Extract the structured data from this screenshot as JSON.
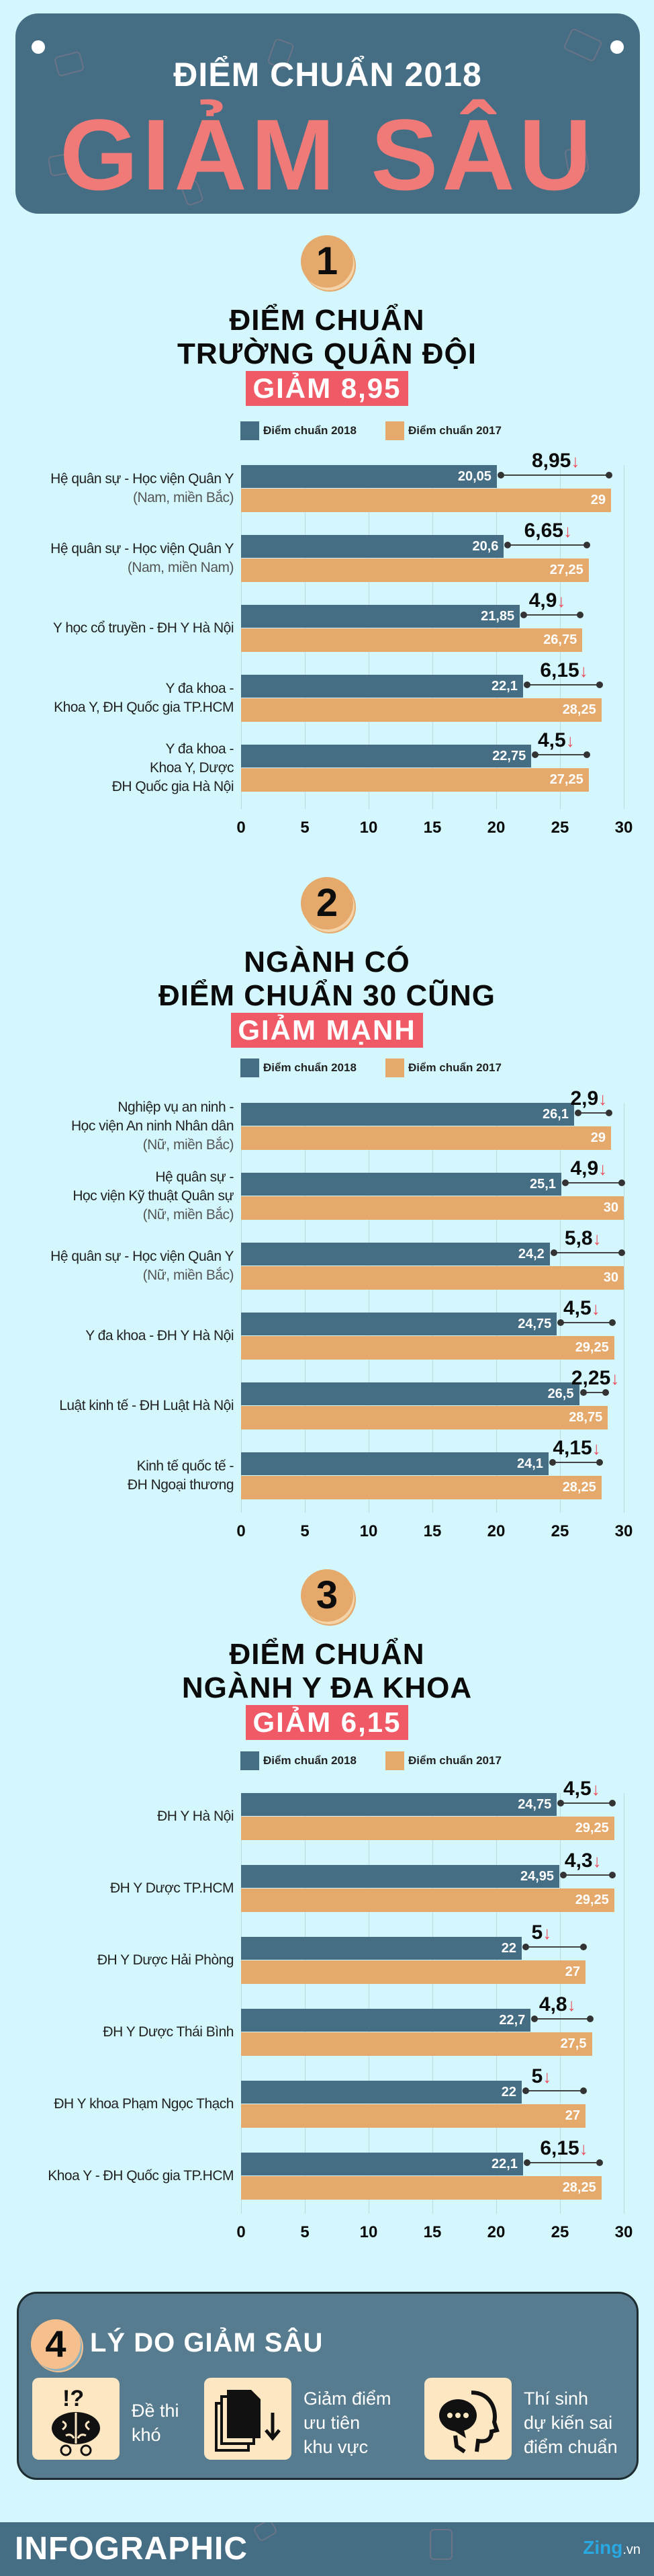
{
  "banner": {
    "subtitle": "ĐIỂM CHUẨN 2018",
    "title": "GIẢM SÂU"
  },
  "legend": {
    "series_2018": "Điểm chuẩn 2018",
    "series_2017": "Điểm chuẩn 2017"
  },
  "colors": {
    "bar_2018": "#456E84",
    "bar_2017": "#E4A96B",
    "badge": "#F05A66",
    "arrow": "#EE4B5A",
    "background": "#D3F7FD",
    "banner_title": "#F07A78"
  },
  "axis": {
    "ticks": [
      "0",
      "5",
      "10",
      "15",
      "20",
      "25",
      "30"
    ]
  },
  "sections": [
    {
      "number": "1",
      "title_line1": "ĐIỂM CHUẨN",
      "title_line2": "TRƯỜNG QUÂN ĐỘI",
      "badge": "GIẢM 8,95",
      "rows": [
        {
          "label": [
            "Hệ quân sự - Học viện Quân Y"
          ],
          "note": "(Nam, miền Bắc)",
          "v2018": "20,05",
          "v2017": "29",
          "diff": "8,95"
        },
        {
          "label": [
            "Hệ quân sự - Học viện Quân Y"
          ],
          "note": "(Nam, miền Nam)",
          "v2018": "20,6",
          "v2017": "27,25",
          "diff": "6,65"
        },
        {
          "label": [
            "Y học cổ truyền - ĐH Y Hà Nội"
          ],
          "note": "",
          "v2018": "21,85",
          "v2017": "26,75",
          "diff": "4,9"
        },
        {
          "label": [
            "Y đa khoa -",
            "Khoa Y, ĐH Quốc gia TP.HCM"
          ],
          "note": "",
          "v2018": "22,1",
          "v2017": "28,25",
          "diff": "6,15"
        },
        {
          "label": [
            "Y đa khoa -",
            "Khoa Y, Dược",
            "ĐH Quốc gia Hà Nội"
          ],
          "note": "",
          "v2018": "22,75",
          "v2017": "27,25",
          "diff": "4,5"
        }
      ]
    },
    {
      "number": "2",
      "title_line1": "NGÀNH CÓ",
      "title_line2": "ĐIỂM CHUẨN 30 CŨNG",
      "badge": "GIẢM MẠNH",
      "rows": [
        {
          "label": [
            "Nghiệp vụ an ninh -",
            "Học viện An ninh Nhân dân"
          ],
          "note": "(Nữ, miền Bắc)",
          "v2018": "26,1",
          "v2017": "29",
          "diff": "2,9"
        },
        {
          "label": [
            "Hệ quân sự -",
            "Học viện Kỹ thuật Quân sự"
          ],
          "note": "(Nữ, miền Bắc)",
          "v2018": "25,1",
          "v2017": "30",
          "diff": "4,9"
        },
        {
          "label": [
            "Hệ quân sự - Học viện Quân Y"
          ],
          "note": "(Nữ, miền Bắc)",
          "v2018": "24,2",
          "v2017": "30",
          "diff": "5,8"
        },
        {
          "label": [
            "Y đa khoa - ĐH Y Hà Nội"
          ],
          "note": "",
          "v2018": "24,75",
          "v2017": "29,25",
          "diff": "4,5"
        },
        {
          "label": [
            "Luật kinh tế - ĐH Luật Hà Nội"
          ],
          "note": "",
          "v2018": "26,5",
          "v2017": "28,75",
          "diff": "2,25"
        },
        {
          "label": [
            "Kinh tế quốc tế -",
            "ĐH Ngoại thương"
          ],
          "note": "",
          "v2018": "24,1",
          "v2017": "28,25",
          "diff": "4,15"
        }
      ]
    },
    {
      "number": "3",
      "title_line1": "ĐIỂM CHUẨN",
      "title_line2": "NGÀNH Y ĐA KHOA",
      "badge": "GIẢM 6,15",
      "rows": [
        {
          "label": [
            "ĐH Y Hà Nội"
          ],
          "note": "",
          "v2018": "24,75",
          "v2017": "29,25",
          "diff": "4,5"
        },
        {
          "label": [
            "ĐH Y Dược TP.HCM"
          ],
          "note": "",
          "v2018": "24,95",
          "v2017": "29,25",
          "diff": "4,3"
        },
        {
          "label": [
            "ĐH Y Dược Hải Phòng"
          ],
          "note": "",
          "v2018": "22",
          "v2017": "27",
          "diff": "5"
        },
        {
          "label": [
            "ĐH Y Dược Thái Bình"
          ],
          "note": "",
          "v2018": "22,7",
          "v2017": "27,5",
          "diff": "4,8"
        },
        {
          "label": [
            "ĐH Y khoa Phạm Ngọc Thạch"
          ],
          "note": "",
          "v2018": "22",
          "v2017": "27",
          "diff": "5"
        },
        {
          "label": [
            "Khoa Y - ĐH Quốc gia TP.HCM"
          ],
          "note": "",
          "v2018": "22,1",
          "v2017": "28,25",
          "diff": "6,15"
        }
      ]
    }
  ],
  "reasons": {
    "number": "4",
    "title": "LÝ DO GIẢM SÂU",
    "items": [
      {
        "icon": "brain-question-icon",
        "lines": [
          "Đề thi",
          "khó"
        ]
      },
      {
        "icon": "documents-down-icon",
        "lines": [
          "Giảm điểm",
          "ưu tiên",
          "khu vực"
        ]
      },
      {
        "icon": "head-speech-bubble-icon",
        "lines": [
          "Thí sinh",
          "dự kiến sai",
          "điểm chuẩn"
        ]
      }
    ]
  },
  "footer": {
    "logo": "INFOGRAPHIC",
    "brand": "Zing",
    "brand_suffix": ".vn"
  },
  "chart_data": [
    {
      "type": "bar",
      "title": "ĐIỂM CHUẨN TRƯỜNG QUÂN ĐỘI — GIẢM 8,95",
      "categories": [
        "Hệ quân sự - Học viện Quân Y (Nam, miền Bắc)",
        "Hệ quân sự - Học viện Quân Y (Nam, miền Nam)",
        "Y học cổ truyền - ĐH Y Hà Nội",
        "Y đa khoa - Khoa Y, ĐH Quốc gia TP.HCM",
        "Y đa khoa - Khoa Y, Dược ĐH Quốc gia Hà Nội"
      ],
      "series": [
        {
          "name": "Điểm chuẩn 2018",
          "values": [
            20.05,
            20.6,
            21.85,
            22.1,
            22.75
          ]
        },
        {
          "name": "Điểm chuẩn 2017",
          "values": [
            29,
            27.25,
            26.75,
            28.25,
            27.25
          ]
        }
      ],
      "annotations": {
        "decrease": [
          8.95,
          6.65,
          4.9,
          6.15,
          4.5
        ]
      },
      "orientation": "horizontal",
      "xlim": [
        0,
        30
      ],
      "xticks": [
        0,
        5,
        10,
        15,
        20,
        25,
        30
      ],
      "grid": true,
      "legend_position": "top"
    },
    {
      "type": "bar",
      "title": "NGÀNH CÓ ĐIỂM CHUẨN 30 CŨNG GIẢM MẠNH",
      "categories": [
        "Nghiệp vụ an ninh - Học viện An ninh Nhân dân (Nữ, miền Bắc)",
        "Hệ quân sự - Học viện Kỹ thuật Quân sự (Nữ, miền Bắc)",
        "Hệ quân sự - Học viện Quân Y (Nữ, miền Bắc)",
        "Y đa khoa - ĐH Y Hà Nội",
        "Luật kinh tế - ĐH Luật Hà Nội",
        "Kinh tế quốc tế - ĐH Ngoại thương"
      ],
      "series": [
        {
          "name": "Điểm chuẩn 2018",
          "values": [
            26.1,
            25.1,
            24.2,
            24.75,
            26.5,
            24.1
          ]
        },
        {
          "name": "Điểm chuẩn 2017",
          "values": [
            29,
            30,
            30,
            29.25,
            28.75,
            28.25
          ]
        }
      ],
      "annotations": {
        "decrease": [
          2.9,
          4.9,
          5.8,
          4.5,
          2.25,
          4.15
        ]
      },
      "orientation": "horizontal",
      "xlim": [
        0,
        30
      ],
      "xticks": [
        0,
        5,
        10,
        15,
        20,
        25,
        30
      ],
      "grid": true,
      "legend_position": "top"
    },
    {
      "type": "bar",
      "title": "ĐIỂM CHUẨN NGÀNH Y ĐA KHOA — GIẢM 6,15",
      "categories": [
        "ĐH Y Hà Nội",
        "ĐH Y Dược TP.HCM",
        "ĐH Y Dược Hải Phòng",
        "ĐH Y Dược Thái Bình",
        "ĐH Y khoa Phạm Ngọc Thạch",
        "Khoa Y - ĐH Quốc gia TP.HCM"
      ],
      "series": [
        {
          "name": "Điểm chuẩn 2018",
          "values": [
            24.75,
            24.95,
            22,
            22.7,
            22,
            22.1
          ]
        },
        {
          "name": "Điểm chuẩn 2017",
          "values": [
            29.25,
            29.25,
            27,
            27.5,
            27,
            28.25
          ]
        }
      ],
      "annotations": {
        "decrease": [
          4.5,
          4.3,
          5,
          4.8,
          5,
          6.15
        ]
      },
      "orientation": "horizontal",
      "xlim": [
        0,
        30
      ],
      "xticks": [
        0,
        5,
        10,
        15,
        20,
        25,
        30
      ],
      "grid": true,
      "legend_position": "top"
    }
  ]
}
